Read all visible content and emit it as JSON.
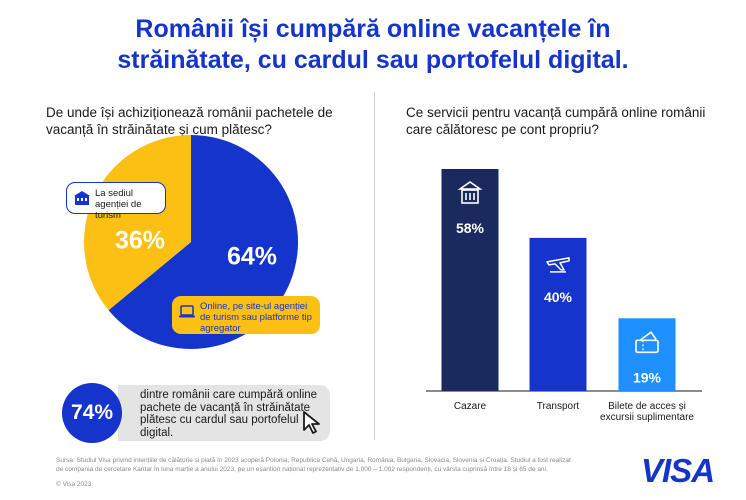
{
  "header": {
    "title_line1": "Românii își cumpără online vacanțele în",
    "title_line2": "străinătate, cu cardul sau portofelul digital."
  },
  "left": {
    "question_line1": "De unde își achiziționează românii pachetele de",
    "question_line2": "vacanță în străinătate și cum plătesc?"
  },
  "right": {
    "question_line1": "Ce servicii pentru vacanță cumpără online românii",
    "question_line2": "care călătoresc pe cont propriu?"
  },
  "stat": {
    "value": "74%",
    "line1": "dintre românii care cumpără online",
    "line2": "pachete de vacanță în străinătate",
    "line3": "plătesc cu cardul sau portofelul",
    "line4": "digital."
  },
  "footer": {
    "source_line1": "Sursa: Studiul Visa privind intențiile de călătorie și plată în 2023 acoperă Polonia, Republica Cehă, Ungaria, România, Bulgaria, Slovacia, Slovenia și Croația. Studiul a fost realizat",
    "source_line2": "de compania de cercetare Kantar în luna martie a anului 2023, pe un eșantion național reprezentativ de 1.000 – 1.002 respondenți, cu vârsta cuprinsă între 18 și 65 de ani.",
    "copyright": "© Visa 2023"
  },
  "brand": {
    "logo_text": "VISA"
  },
  "icons": [
    "building-icon",
    "laptop-icon",
    "hotel-icon",
    "airplane-icon",
    "ticket-icon",
    "cursor-icon"
  ],
  "colors": {
    "blue": "#1434cb",
    "navy": "#1a2a5e",
    "yellow": "#fcc015",
    "light_blue": "#1e90ff",
    "grey": "#e4e4e4"
  },
  "chart_data": [
    {
      "type": "pie",
      "slices": [
        {
          "label_line1": "Online, pe site-ul agenției",
          "label_line2": "de turism sau platforme tip",
          "label_line3": "agregator",
          "value": 64,
          "display": "64%",
          "color": "#1434cb"
        },
        {
          "label_line1": "La sediul",
          "label_line2": "agenției de turism",
          "value": 36,
          "display": "36%",
          "color": "#fcc015"
        }
      ]
    },
    {
      "type": "bar",
      "categories": [
        "Cazare",
        "Transport",
        "Bilete de acces și excursii suplimentare"
      ],
      "category_lines": [
        [
          "Cazare"
        ],
        [
          "Transport"
        ],
        [
          "Bilete de acces și",
          "excursii suplimentare"
        ]
      ],
      "values": [
        58,
        40,
        19
      ],
      "display": [
        "58%",
        "40%",
        "19%"
      ],
      "colors": [
        "#1a2a5e",
        "#1434cb",
        "#1e90ff"
      ],
      "ylim": [
        0,
        58
      ]
    }
  ]
}
